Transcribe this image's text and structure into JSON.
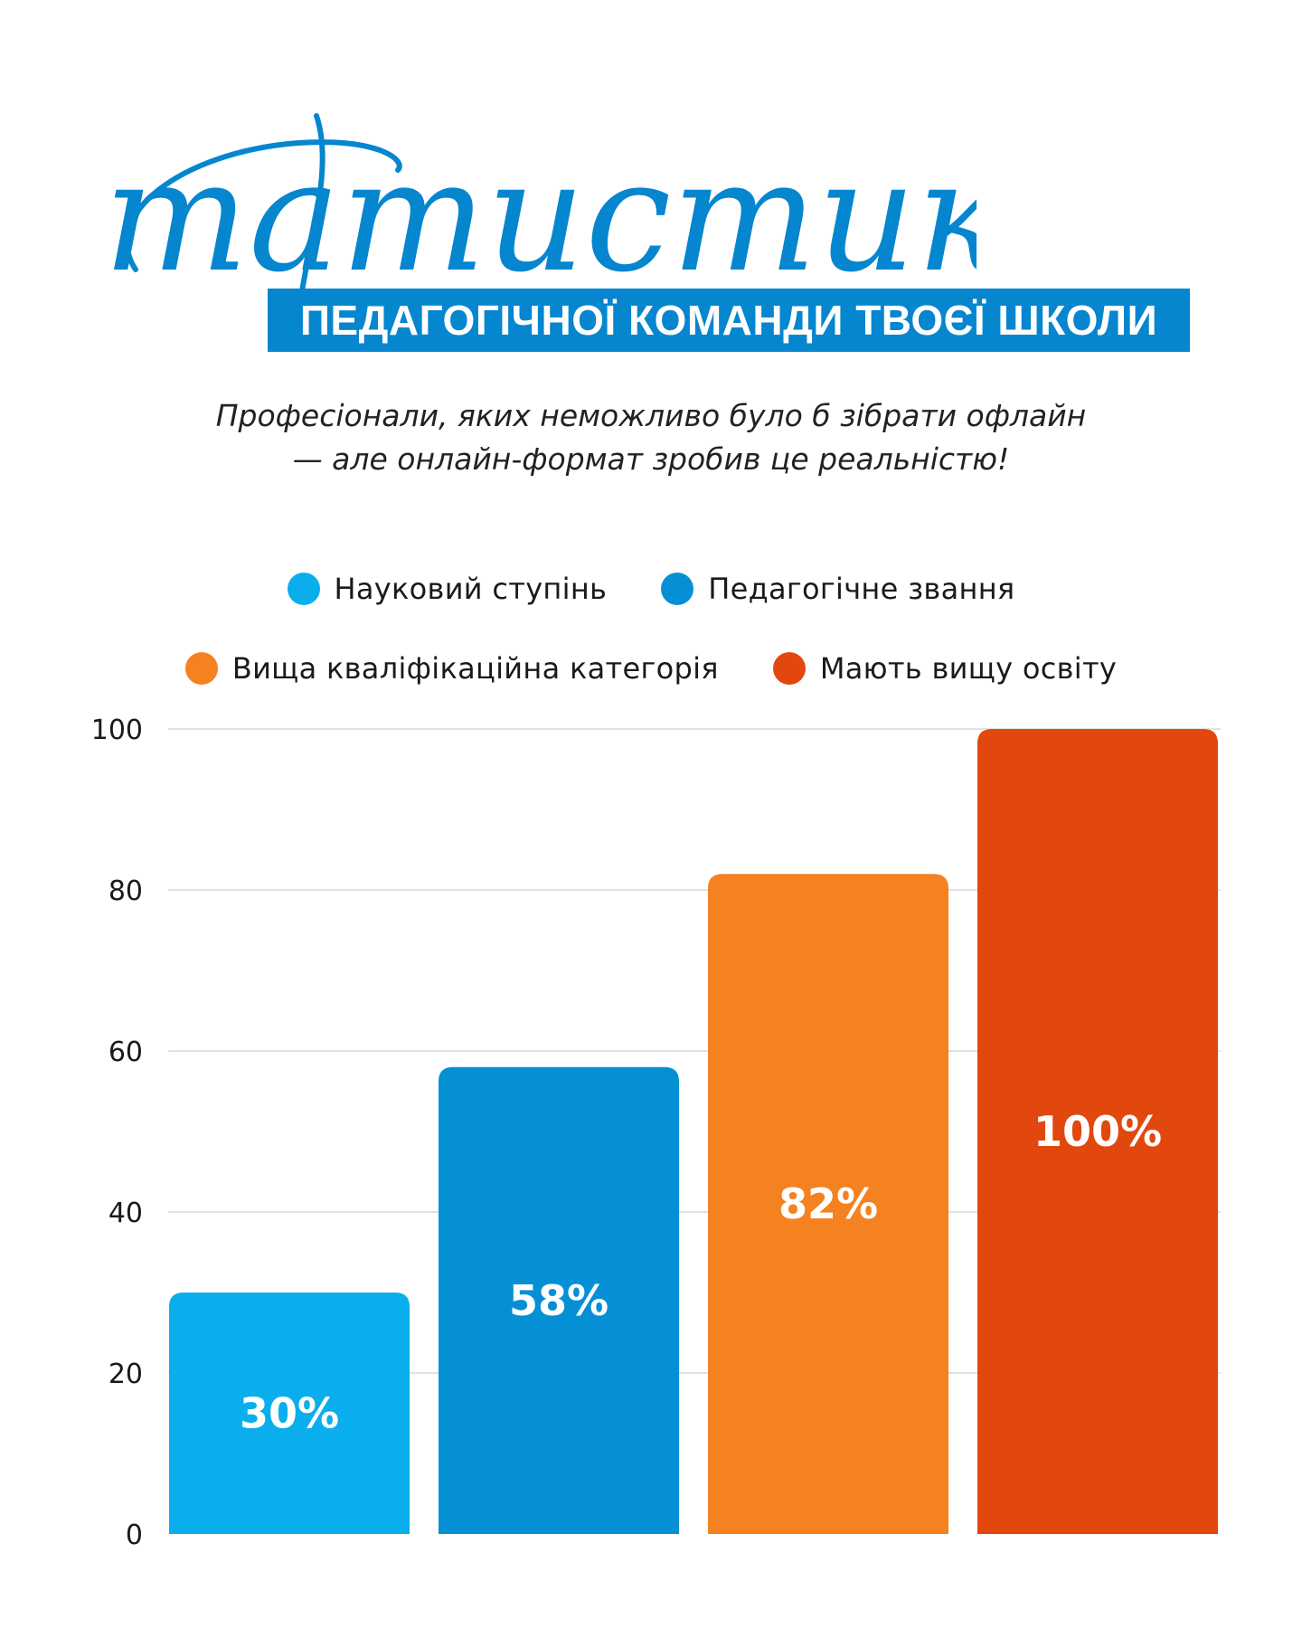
{
  "header": {
    "script_title": "Статистика",
    "banner_text": "ПЕДАГОГІЧНОЇ КОМАНДИ ТВОЄЇ ШКОЛИ",
    "subtitle_line1": "Професіонали, яких неможливо було б зібрати офлайн",
    "subtitle_line2": "— але онлайн-формат зробив це реальністю!"
  },
  "colors": {
    "title_blue": "#0586cf",
    "grid": "#e2e2e2"
  },
  "legend": [
    {
      "label": "Науковий ступінь",
      "color": "#0aaeec"
    },
    {
      "label": "Педагогічне звання",
      "color": "#0590d6"
    },
    {
      "label": "Вища кваліфікаційна категорія",
      "color": "#f58220"
    },
    {
      "label": "Мають вищу освіту",
      "color": "#e2480d"
    }
  ],
  "chart_data": {
    "type": "bar",
    "title": "",
    "xlabel": "",
    "ylabel": "",
    "categories": [
      "Науковий ступінь",
      "Педагогічне звання",
      "Вища кваліфікаційна категорія",
      "Мають вищу освіту"
    ],
    "values": [
      30,
      58,
      82,
      100
    ],
    "data_labels": [
      "30%",
      "58%",
      "82%",
      "100%"
    ],
    "colors": [
      "#0aaeec",
      "#0590d6",
      "#f58220",
      "#e2480d"
    ],
    "ylim": [
      0,
      100
    ],
    "yticks": [
      0,
      20,
      40,
      60,
      80,
      100
    ],
    "grid": true,
    "legend_position": "top"
  }
}
